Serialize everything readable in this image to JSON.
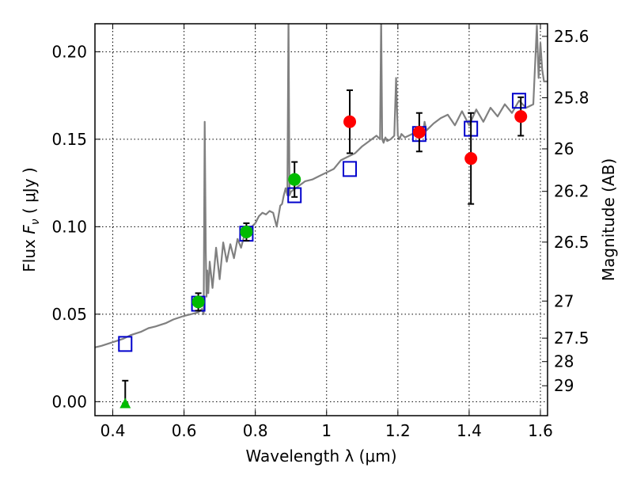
{
  "chart_data": {
    "type": "scatter",
    "xlabel": "Wavelength  λ (μm)",
    "ylabel": "Flux  F_ν  ( μJy )",
    "ylabel_parts": {
      "prefix": "Flux  ",
      "symbol": "F",
      "subscript": "ν",
      "suffix": "  ( μJy )"
    },
    "y2label": "Magnitude (AB)",
    "xlim": [
      0.35,
      1.62
    ],
    "ylim": [
      -0.008,
      0.216
    ],
    "xticks": [
      0.4,
      0.6,
      0.8,
      1.0,
      1.2,
      1.4,
      1.6
    ],
    "xtick_labels": [
      "0.4",
      "0.6",
      "0.8",
      "1",
      "1.2",
      "1.4",
      "1.6"
    ],
    "yticks": [
      0.0,
      0.05,
      0.1,
      0.15,
      0.2
    ],
    "ytick_labels": [
      "0.00",
      "0.05",
      "0.10",
      "0.15",
      "0.20"
    ],
    "y2ticks": [
      {
        "label": "25.6",
        "flux": 0.2088
      },
      {
        "label": "25.8",
        "flux": 0.1737
      },
      {
        "label": "26",
        "flux": 0.1445
      },
      {
        "label": "26.2",
        "flux": 0.1202
      },
      {
        "label": "26.5",
        "flux": 0.0912
      },
      {
        "label": "27",
        "flux": 0.0575
      },
      {
        "label": "27.5",
        "flux": 0.0363
      },
      {
        "label": "28",
        "flux": 0.0229
      },
      {
        "label": "29",
        "flux": 0.0091
      }
    ],
    "grid": true,
    "colors": {
      "model_line": "#808080",
      "model_points": "#0000cc",
      "green_points": "#00bb00",
      "red_points": "#ff0000",
      "error_bars": "#000000"
    },
    "series": [
      {
        "kind": "line",
        "x": [
          0.35,
          0.37,
          0.4,
          0.43,
          0.45,
          0.48,
          0.5,
          0.52,
          0.55,
          0.57,
          0.6,
          0.62,
          0.64,
          0.65,
          0.655,
          0.658,
          0.661,
          0.663,
          0.665,
          0.668,
          0.672,
          0.68,
          0.69,
          0.7,
          0.71,
          0.72,
          0.73,
          0.74,
          0.75,
          0.76,
          0.77,
          0.78,
          0.79,
          0.8,
          0.81,
          0.82,
          0.83,
          0.84,
          0.85,
          0.86,
          0.87,
          0.875,
          0.88,
          0.885,
          0.89,
          0.893,
          0.896,
          0.9,
          0.92,
          0.94,
          0.96,
          0.98,
          1.0,
          1.02,
          1.04,
          1.06,
          1.08,
          1.1,
          1.12,
          1.14,
          1.15,
          1.153,
          1.156,
          1.16,
          1.165,
          1.17,
          1.18,
          1.19,
          1.195,
          1.2,
          1.205,
          1.21,
          1.22,
          1.24,
          1.26,
          1.27,
          1.275,
          1.28,
          1.3,
          1.32,
          1.34,
          1.36,
          1.38,
          1.4,
          1.42,
          1.44,
          1.46,
          1.48,
          1.5,
          1.52,
          1.54,
          1.56,
          1.58,
          1.59,
          1.595,
          1.6,
          1.605,
          1.61,
          1.62
        ],
        "y": [
          0.031,
          0.032,
          0.034,
          0.036,
          0.038,
          0.04,
          0.042,
          0.043,
          0.045,
          0.047,
          0.049,
          0.05,
          0.051,
          0.053,
          0.05,
          0.16,
          0.085,
          0.06,
          0.075,
          0.062,
          0.08,
          0.065,
          0.088,
          0.07,
          0.091,
          0.08,
          0.09,
          0.082,
          0.093,
          0.088,
          0.096,
          0.095,
          0.1,
          0.102,
          0.106,
          0.108,
          0.107,
          0.109,
          0.108,
          0.1,
          0.112,
          0.113,
          0.118,
          0.122,
          0.118,
          0.22,
          0.118,
          0.12,
          0.123,
          0.126,
          0.127,
          0.129,
          0.131,
          0.133,
          0.138,
          0.14,
          0.142,
          0.146,
          0.149,
          0.152,
          0.15,
          0.22,
          0.15,
          0.148,
          0.151,
          0.149,
          0.15,
          0.152,
          0.185,
          0.152,
          0.15,
          0.153,
          0.151,
          0.153,
          0.153,
          0.152,
          0.16,
          0.155,
          0.159,
          0.162,
          0.164,
          0.158,
          0.166,
          0.158,
          0.167,
          0.16,
          0.168,
          0.163,
          0.17,
          0.165,
          0.172,
          0.168,
          0.17,
          0.215,
          0.185,
          0.205,
          0.19,
          0.183,
          0.183
        ]
      },
      {
        "kind": "open_square",
        "x": [
          0.435,
          0.64,
          0.775,
          0.91,
          1.065,
          1.26,
          1.405,
          1.54
        ],
        "y": [
          0.033,
          0.056,
          0.096,
          0.118,
          0.133,
          0.153,
          0.156,
          0.172
        ]
      },
      {
        "kind": "filled_circle_green",
        "x": [
          0.64,
          0.775,
          0.91
        ],
        "y": [
          0.057,
          0.097,
          0.127
        ],
        "yerr": [
          0.005,
          0.005,
          0.01
        ]
      },
      {
        "kind": "filled_circle_red",
        "x": [
          1.065,
          1.26,
          1.405,
          1.545
        ],
        "y": [
          0.16,
          0.154,
          0.139,
          0.163
        ],
        "yerr": [
          0.018,
          0.011,
          0.026,
          0.011
        ]
      },
      {
        "kind": "triangle_green",
        "x": [
          0.435
        ],
        "y": [
          -0.001
        ],
        "yerr_low": [
          0.0
        ],
        "yerr_high": [
          0.013
        ]
      }
    ]
  }
}
